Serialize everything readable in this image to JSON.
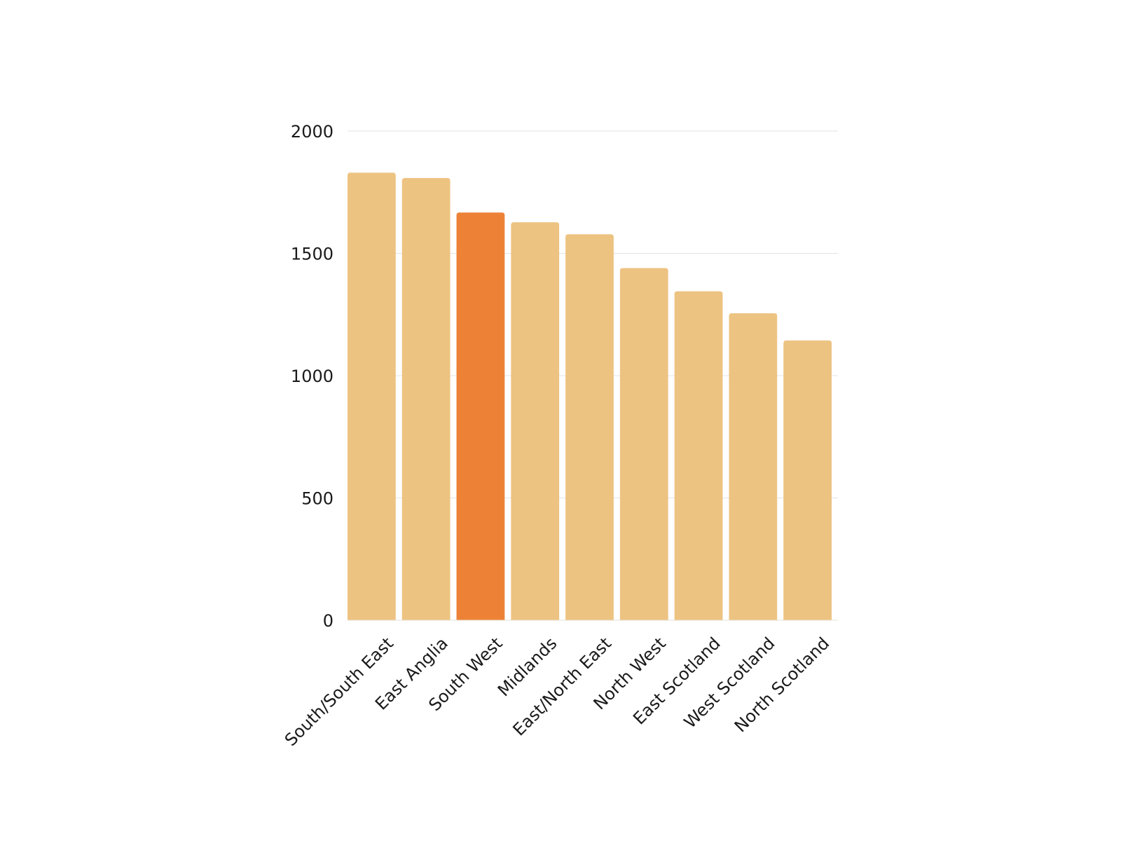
{
  "chart_data": {
    "type": "bar",
    "categories": [
      "South/South East",
      "East Anglia",
      "South West",
      "Midlands",
      "East/North East",
      "North West",
      "East Scotland",
      "West Scotland",
      "North Scotland"
    ],
    "values": [
      1830,
      1808,
      1667,
      1627,
      1578,
      1440,
      1345,
      1255,
      1144
    ],
    "highlight_index": 2,
    "title": "",
    "xlabel": "",
    "ylabel": "",
    "ylim": [
      0,
      2000
    ],
    "yticks": [
      0,
      500,
      1000,
      1500,
      2000
    ],
    "grid": true,
    "legend": "none",
    "colors": {
      "bar": "#edc382",
      "highlight": "#ed8237",
      "grid": "#e3e3e3",
      "text": "#1a1a1a"
    }
  }
}
